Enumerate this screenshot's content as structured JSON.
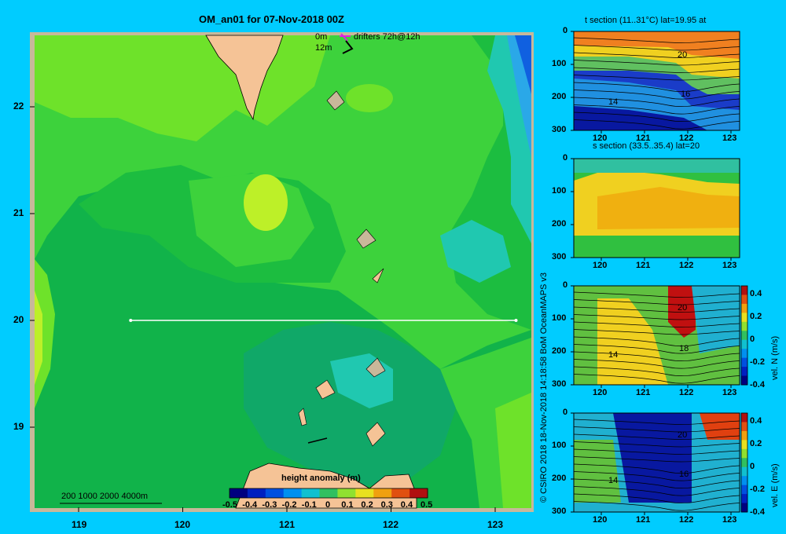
{
  "map": {
    "title": "OM_an01 for 07-Nov-2018 00Z",
    "legend_drifters": {
      "line1_depth": "0m",
      "line2_depth": "12m",
      "label": "drifters 72h@12h"
    },
    "lat_ticks": [
      "22",
      "21",
      "20",
      "19"
    ],
    "lon_ticks": [
      "119",
      "120",
      "121",
      "122",
      "123"
    ],
    "bathy_legend": "200  1000  2000  4000m",
    "colorbar": {
      "title": "height anomaly (m)",
      "labels": [
        "-0.5",
        "-0.4",
        "-0.3",
        "-0.2",
        "-0.1",
        "0",
        "0.1",
        "0.2",
        "0.3",
        "0.4",
        "0.5"
      ]
    },
    "section_line": {
      "lon_start": 119.5,
      "lon_end": 123.2,
      "lat": 20
    }
  },
  "panels": {
    "t_section": {
      "title": "t section (11..31°C) lat=19.95 at",
      "y_ticks": [
        "0",
        "100",
        "200",
        "300"
      ],
      "x_ticks": [
        "120",
        "121",
        "122",
        "123"
      ],
      "contour_labels": [
        "20",
        "16",
        "14"
      ]
    },
    "s_section": {
      "title": "s section (33.5..35.4) lat=20",
      "y_ticks": [
        "0",
        "100",
        "200",
        "300"
      ],
      "x_ticks": [
        "120",
        "121",
        "122",
        "123"
      ]
    },
    "vel_n": {
      "y_ticks": [
        "0",
        "100",
        "200",
        "300"
      ],
      "x_ticks": [
        "120",
        "121",
        "122",
        "123"
      ],
      "colorbar_label": "vel. N (m/s)",
      "colorbar_ticks": [
        "0.4",
        "0.2",
        "0",
        "-0.2",
        "-0.4"
      ],
      "contour_labels": [
        "20",
        "18",
        "14"
      ]
    },
    "vel_e": {
      "y_ticks": [
        "0",
        "100",
        "200",
        "300"
      ],
      "x_ticks": [
        "120",
        "121",
        "122",
        "123"
      ],
      "colorbar_label": "vel. E (m/s)",
      "colorbar_ticks": [
        "0.4",
        "0.2",
        "0",
        "-0.2",
        "-0.4"
      ],
      "contour_labels": [
        "20",
        "16",
        "14"
      ]
    }
  },
  "credit": "© CSIRO 2018   18-Nov-2018 14:18:58 BoM OceanMAPS v3"
}
